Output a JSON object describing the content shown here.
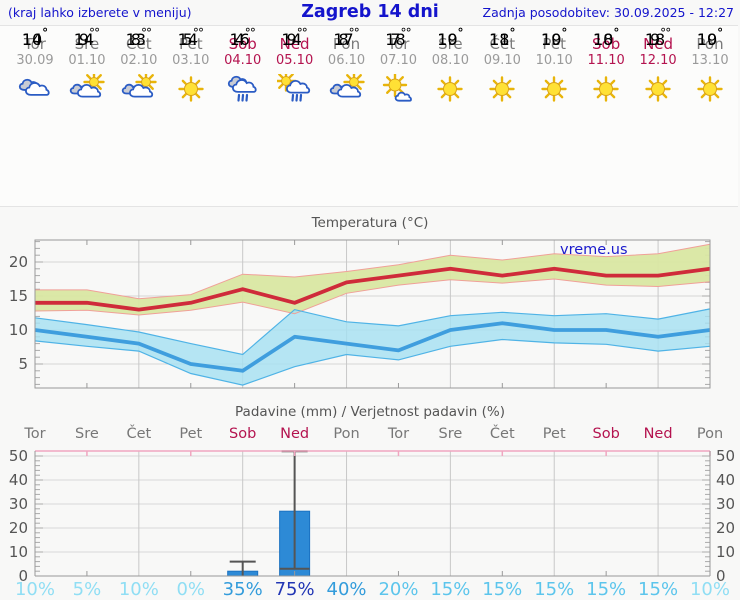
{
  "header": {
    "left_note": "(kraj lahko izberete v meniju)",
    "title": "Zagreb 14 dni",
    "updated": "Zadnja posodobitev: 30.09.2025 - 12:27"
  },
  "colors": {
    "header_blue": "#1414cc",
    "weekday_gray": "#7a7a7a",
    "weekend_crimson": "#b4134f",
    "tmax_red": "#dd2f2f",
    "tmin_blue": "#58b0ee",
    "temp_max_line": "#cf2b3a",
    "temp_max_band": "#d9e7a2",
    "temp_min_line": "#3f9ede",
    "temp_min_band": "#a6e0f2",
    "bar_blue": "#2d8ad6",
    "prob_pale": "#90def4",
    "prob_light": "#5cc5ec",
    "prob_mid": "#339cdb",
    "prob_dark": "#2136b4",
    "grid_gray": "#cccccc",
    "axis_gray": "#999999",
    "pink_axis": "#f0a6c0"
  },
  "days": [
    {
      "name": "Tor",
      "date": "30.09",
      "weekend": false,
      "icon": "cloudy",
      "tmax": 14,
      "tmin": 10
    },
    {
      "name": "Sre",
      "date": "01.10",
      "weekend": false,
      "icon": "partly-cloudy",
      "tmax": 14,
      "tmin": 9
    },
    {
      "name": "Čet",
      "date": "02.10",
      "weekend": false,
      "icon": "partly-cloudy",
      "tmax": 13,
      "tmin": 8
    },
    {
      "name": "Pet",
      "date": "03.10",
      "weekend": false,
      "icon": "sunny",
      "tmax": 14,
      "tmin": 5
    },
    {
      "name": "Sob",
      "date": "04.10",
      "weekend": true,
      "icon": "rain",
      "tmax": 16,
      "tmin": 4
    },
    {
      "name": "Ned",
      "date": "05.10",
      "weekend": true,
      "icon": "sun-showers",
      "tmax": 14,
      "tmin": 9
    },
    {
      "name": "Pon",
      "date": "06.10",
      "weekend": false,
      "icon": "partly-cloudy",
      "tmax": 17,
      "tmin": 8
    },
    {
      "name": "Tor",
      "date": "07.10",
      "weekend": false,
      "icon": "mostly-sunny",
      "tmax": 18,
      "tmin": 7
    },
    {
      "name": "Sre",
      "date": "08.10",
      "weekend": false,
      "icon": "sunny",
      "tmax": 19,
      "tmin": 10
    },
    {
      "name": "Čet",
      "date": "09.10",
      "weekend": false,
      "icon": "sunny",
      "tmax": 18,
      "tmin": 11
    },
    {
      "name": "Pet",
      "date": "10.10",
      "weekend": false,
      "icon": "sunny",
      "tmax": 19,
      "tmin": 10
    },
    {
      "name": "Sob",
      "date": "11.10",
      "weekend": true,
      "icon": "sunny",
      "tmax": 18,
      "tmin": 10
    },
    {
      "name": "Ned",
      "date": "12.10",
      "weekend": true,
      "icon": "sunny",
      "tmax": 18,
      "tmin": 9
    },
    {
      "name": "Pon",
      "date": "13.10",
      "weekend": false,
      "icon": "sunny",
      "tmax": 19,
      "tmin": 10
    }
  ],
  "chart_data": [
    {
      "type": "line",
      "title": "Temperatura (°C)",
      "watermark": "vreme.us",
      "categories": [
        "Tor",
        "Sre",
        "Čet",
        "Pet",
        "Sob",
        "Ned",
        "Pon",
        "Tor",
        "Sre",
        "Čet",
        "Pet",
        "Sob",
        "Ned",
        "Pon"
      ],
      "yticks": [
        5,
        10,
        15,
        20
      ],
      "ylim": [
        1.5,
        23.2
      ],
      "grid": true,
      "series": [
        {
          "name": "max-temp",
          "values": [
            14,
            14,
            13,
            14,
            16,
            14,
            17,
            18,
            19,
            18,
            19,
            18,
            18,
            19
          ],
          "band_upper": [
            15.9,
            15.9,
            14.6,
            15.2,
            18.2,
            17.8,
            18.6,
            19.6,
            21.0,
            20.3,
            21.2,
            20.8,
            21.2,
            22.6
          ],
          "band_lower": [
            12.8,
            12.9,
            12.2,
            12.9,
            14.1,
            12.4,
            15.4,
            16.6,
            17.4,
            16.9,
            17.5,
            16.6,
            16.4,
            17.1
          ]
        },
        {
          "name": "min-temp",
          "values": [
            10,
            9,
            8,
            5,
            4,
            9,
            8,
            7,
            10,
            11,
            10,
            10,
            9,
            10
          ],
          "band_upper": [
            11.8,
            10.8,
            9.7,
            8.0,
            6.4,
            13.0,
            11.2,
            10.6,
            12.1,
            12.6,
            12.1,
            12.4,
            11.6,
            13.1
          ],
          "band_lower": [
            8.4,
            7.6,
            6.9,
            3.6,
            1.9,
            4.6,
            6.4,
            5.6,
            7.6,
            8.6,
            8.1,
            7.9,
            6.9,
            7.6
          ]
        }
      ]
    },
    {
      "type": "bar",
      "title": "Padavine (mm) / Verjetnost padavin (%)",
      "categories": [
        "Tor",
        "Sre",
        "Čet",
        "Pet",
        "Sob",
        "Ned",
        "Pon",
        "Tor",
        "Sre",
        "Čet",
        "Pet",
        "Sob",
        "Ned",
        "Pon"
      ],
      "ylabel_left": "mm",
      "yticks": [
        0,
        10,
        20,
        30,
        40,
        50
      ],
      "ylim": [
        0,
        52
      ],
      "values": [
        0,
        0,
        0,
        0,
        2,
        27,
        0,
        0,
        0,
        0,
        0,
        0,
        0,
        0
      ],
      "whiskers": [
        null,
        null,
        null,
        null,
        {
          "low": 0,
          "high": 6
        },
        {
          "low": 3,
          "high": 52
        },
        null,
        null,
        null,
        null,
        null,
        null,
        null,
        null
      ],
      "probabilities": [
        10,
        5,
        10,
        0,
        35,
        75,
        40,
        20,
        15,
        15,
        15,
        15,
        15,
        10
      ]
    }
  ]
}
